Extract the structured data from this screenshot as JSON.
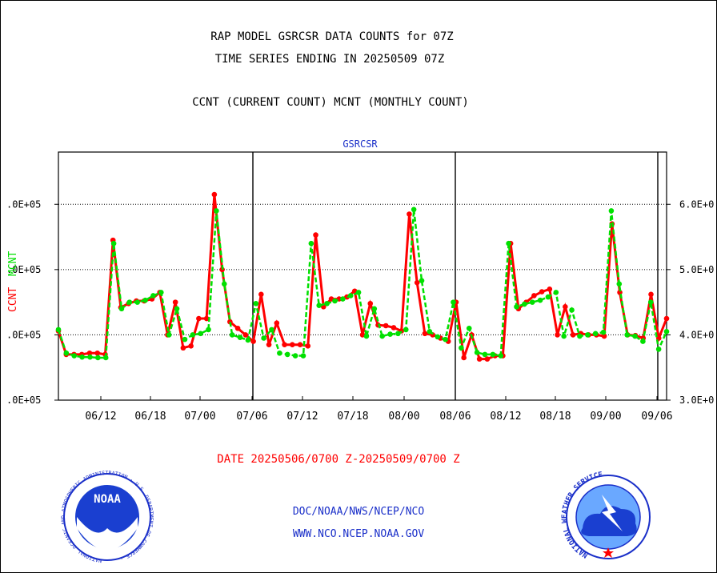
{
  "header": {
    "title_line1": "RAP MODEL GSRCSR DATA COUNTS for 07Z",
    "title_line2": "TIME SERIES ENDING IN 20250509 07Z",
    "subtitle": "CCNT (CURRENT COUNT) MCNT (MONTHLY COUNT)"
  },
  "chart_data": {
    "type": "line",
    "title": "GSRCSR",
    "ylabel_left_ccnt": "CCNT",
    "ylabel_left_mcnt": "MCNT",
    "ylim": [
      300000,
      680000
    ],
    "y_ticks_left": [
      ".0E+05",
      ".0E+05",
      ".0E+05",
      ".0E+05"
    ],
    "y_ticks_right": [
      "3.0E+0",
      "4.0E+0",
      "5.0E+0",
      "6.0E+0"
    ],
    "y_tick_values": [
      300000,
      400000,
      500000,
      600000
    ],
    "x_ticks": [
      "06/12",
      "06/18",
      "07/00",
      "07/06",
      "07/12",
      "07/18",
      "08/00",
      "08/06",
      "08/12",
      "08/18",
      "09/00",
      "09/06"
    ],
    "grid": "horizontal dotted at 400000, 500000, 600000; vertical at day boundaries",
    "colors": {
      "ccnt": "#ff0000",
      "mcnt": "#00e000"
    },
    "series": [
      {
        "key": "ccnt",
        "values": [
          406000,
          370000,
          370000,
          370000,
          372000,
          372000,
          370000,
          545000,
          442000,
          448000,
          452000,
          452000,
          455000,
          465000,
          400000,
          450000,
          380000,
          383000,
          425000,
          425000,
          615000,
          500000,
          420000,
          410000,
          400000,
          390000,
          462000,
          385000,
          418000,
          385000,
          385000,
          385000,
          383000,
          553000,
          443000,
          455000,
          455000,
          458000,
          467000,
          400000,
          448000,
          415000,
          414000,
          411000,
          406000,
          585000,
          480000,
          402000,
          400000,
          395000,
          390000,
          450000,
          365000,
          400000,
          363000,
          363000,
          368000,
          368000,
          540000,
          440000,
          450000,
          460000,
          466000,
          470000,
          400000,
          443000,
          400000,
          402000,
          400000,
          400000,
          398000,
          570000,
          465000,
          400000,
          399000,
          395000,
          462000,
          395000,
          425000
        ],
        "markers": [
          406000,
          370000,
          370000,
          370000,
          372000,
          372000,
          370000,
          545000,
          442000,
          448000,
          452000,
          452000,
          455000,
          465000,
          400000,
          450000,
          380000,
          383000,
          425000,
          425000,
          615000,
          500000,
          420000,
          410000,
          400000,
          390000,
          462000,
          385000,
          418000,
          385000,
          385000,
          385000,
          383000,
          553000,
          443000,
          455000,
          455000,
          458000,
          467000,
          400000,
          448000,
          415000,
          414000,
          411000,
          406000,
          585000,
          480000,
          402000,
          400000,
          395000,
          390000,
          450000,
          365000,
          400000,
          363000,
          363000,
          368000,
          368000,
          540000,
          440000,
          450000,
          460000,
          466000,
          470000,
          400000,
          443000,
          400000,
          402000,
          400000,
          400000,
          398000,
          570000,
          465000,
          400000,
          399000,
          395000,
          462000,
          395000,
          425000
        ]
      },
      {
        "key": "mcnt",
        "values": [
          408000,
          372000,
          368000,
          366000,
          366000,
          365000,
          365000,
          540000,
          440000,
          450000,
          450000,
          453000,
          460000,
          465000,
          400000,
          440000,
          393000,
          400000,
          402000,
          408000,
          590000,
          478000,
          400000,
          396000,
          392000,
          448000,
          395000,
          408000,
          372000,
          370000,
          368000,
          368000,
          540000,
          445000,
          448000,
          452000,
          455000,
          460000,
          465000,
          398000,
          440000,
          398000,
          401000,
          402000,
          408000,
          592000,
          483000,
          405000,
          397000,
          393000,
          450000,
          380000,
          410000,
          373000,
          370000,
          370000,
          368000,
          540000,
          443000,
          447000,
          450000,
          453000,
          458000,
          465000,
          398000,
          438000,
          398000,
          400000,
          402000,
          404000,
          590000,
          478000,
          400000,
          398000,
          390000,
          450000,
          378000,
          405000
        ],
        "markers": []
      }
    ],
    "date_caption": "DATE 20250506/0700 Z-20250509/0700 Z"
  },
  "footer": {
    "link1": "DOC/NOAA/NWS/NCEP/NCO",
    "link2": "WWW.NCO.NCEP.NOAA.GOV",
    "noaa_logo_text": "NOAA",
    "noaa_ring_text": "NATIONAL OCEANIC AND ATMOSPHERIC ADMINISTRATION · U.S. DEPARTMENT OF COMMERCE ·",
    "nws_ring_text": "NATIONAL WEATHER SERVICE"
  }
}
